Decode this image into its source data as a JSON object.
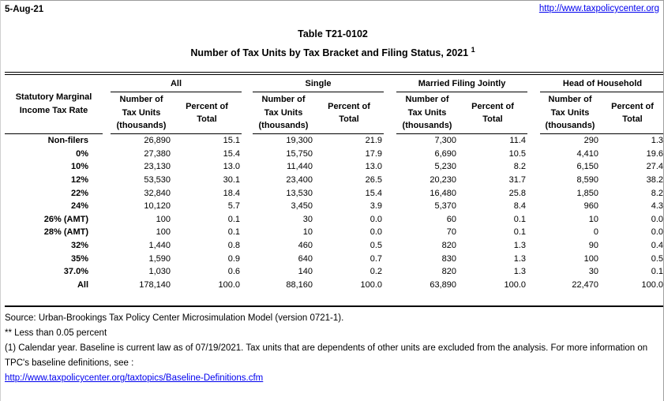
{
  "page": {
    "date": "5-Aug-21",
    "site_link": "http://www.taxpolicycenter.org"
  },
  "title": {
    "line1": "Table T21-0102",
    "line2": "Number of Tax Units by Tax Bracket and Filing Status, 2021",
    "superscript": "1"
  },
  "table": {
    "row_header": "Statutory Marginal\nIncome Tax Rate",
    "groups": [
      "All",
      "Single",
      "Married Filing Jointly",
      "Head of Household"
    ],
    "subheaders": {
      "number": "Number of\nTax Units\n(thousands)",
      "percent": "Percent of\nTotal"
    },
    "rows": [
      {
        "label": "Non-filers",
        "values": [
          "26,890",
          "15.1",
          "19,300",
          "21.9",
          "7,300",
          "11.4",
          "290",
          "1.3"
        ]
      },
      {
        "label": "0%",
        "values": [
          "27,380",
          "15.4",
          "15,750",
          "17.9",
          "6,690",
          "10.5",
          "4,410",
          "19.6"
        ]
      },
      {
        "label": "10%",
        "values": [
          "23,130",
          "13.0",
          "11,440",
          "13.0",
          "5,230",
          "8.2",
          "6,150",
          "27.4"
        ]
      },
      {
        "label": "12%",
        "values": [
          "53,530",
          "30.1",
          "23,400",
          "26.5",
          "20,230",
          "31.7",
          "8,590",
          "38.2"
        ]
      },
      {
        "label": "22%",
        "values": [
          "32,840",
          "18.4",
          "13,530",
          "15.4",
          "16,480",
          "25.8",
          "1,850",
          "8.2"
        ]
      },
      {
        "label": "24%",
        "values": [
          "10,120",
          "5.7",
          "3,450",
          "3.9",
          "5,370",
          "8.4",
          "960",
          "4.3"
        ]
      },
      {
        "label": "26% (AMT)",
        "values": [
          "100",
          "0.1",
          "30",
          "0.0",
          "60",
          "0.1",
          "10",
          "0.0"
        ]
      },
      {
        "label": "28% (AMT)",
        "values": [
          "100",
          "0.1",
          "10",
          "0.0",
          "70",
          "0.1",
          "0",
          "0.0"
        ]
      },
      {
        "label": "32%",
        "values": [
          "1,440",
          "0.8",
          "460",
          "0.5",
          "820",
          "1.3",
          "90",
          "0.4"
        ]
      },
      {
        "label": "35%",
        "values": [
          "1,590",
          "0.9",
          "640",
          "0.7",
          "830",
          "1.3",
          "100",
          "0.5"
        ]
      },
      {
        "label": "37.0%",
        "values": [
          "1,030",
          "0.6",
          "140",
          "0.2",
          "820",
          "1.3",
          "30",
          "0.1"
        ]
      },
      {
        "label": "All",
        "values": [
          "178,140",
          "100.0",
          "88,160",
          "100.0",
          "63,890",
          "100.0",
          "22,470",
          "100.0"
        ]
      }
    ]
  },
  "footer": {
    "source": "Source: Urban-Brookings Tax Policy Center Microsimulation Model (version 0721-1).",
    "note_less_than": "** Less than 0.05 percent",
    "note1": "(1) Calendar year. Baseline is current law as of 07/19/2021. Tax units that are dependents of other units are excluded from the analysis. For more information on TPC's baseline definitions, see :",
    "link": "http://www.taxpolicycenter.org/taxtopics/Baseline-Definitions.cfm"
  },
  "colors": {
    "link": "#0000EE",
    "text": "#000000",
    "rule": "#000000"
  }
}
